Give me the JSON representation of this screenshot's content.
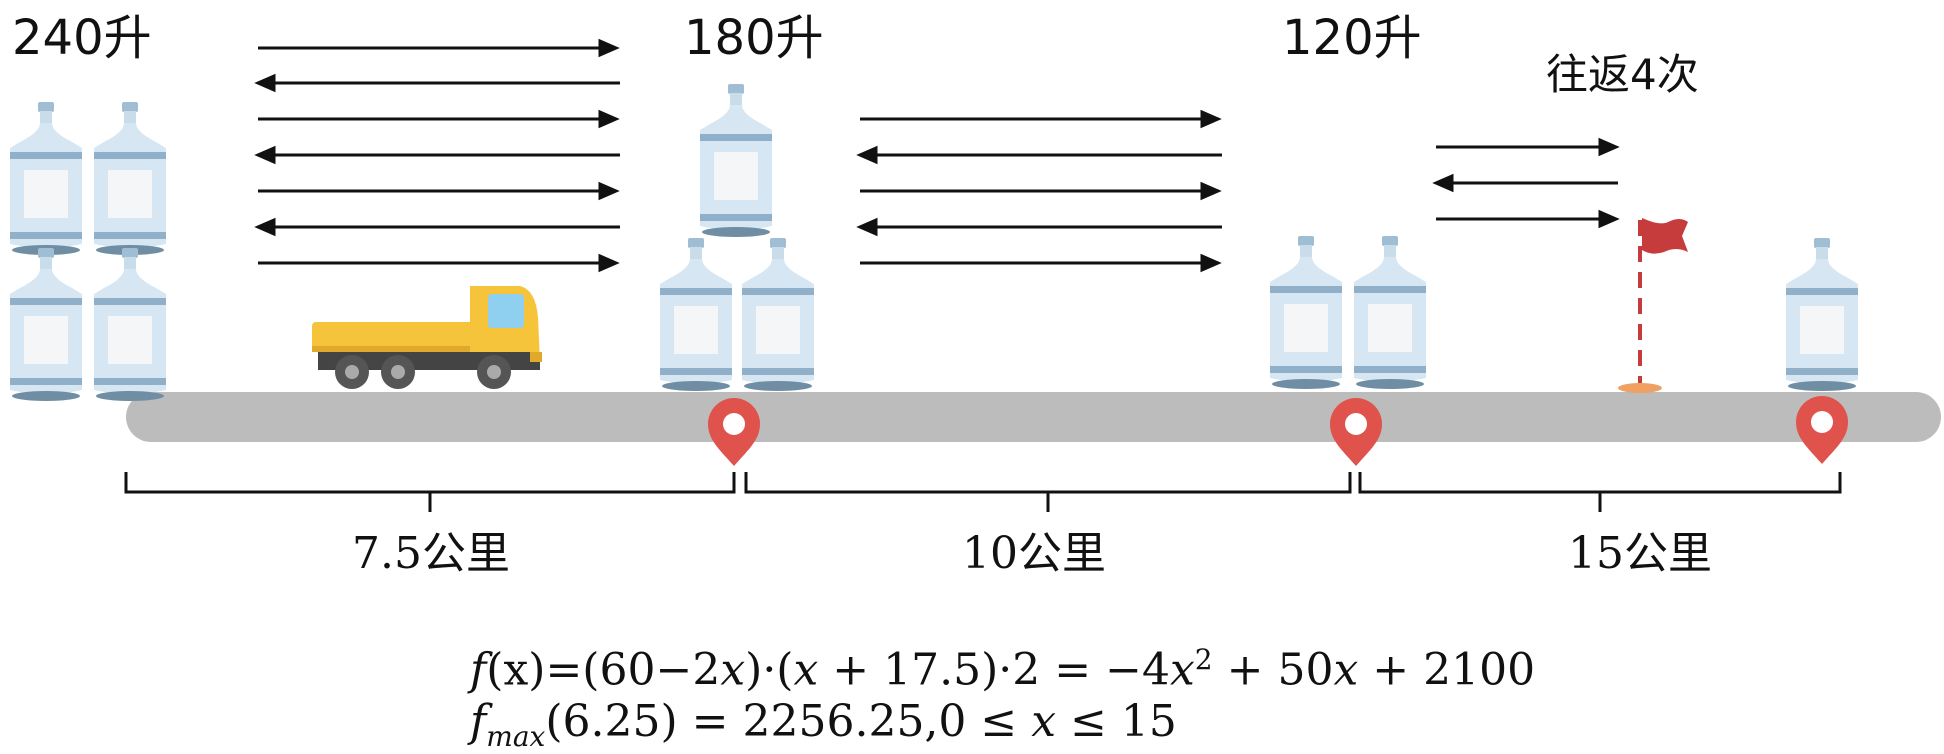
{
  "stations": [
    {
      "id": "start",
      "label": "240升"
    },
    {
      "id": "depot1",
      "label": "180升"
    },
    {
      "id": "depot2",
      "label": "120升"
    }
  ],
  "round_trip_note": "往返4次",
  "segments": [
    {
      "label": "7.5公里"
    },
    {
      "label": "10公里"
    },
    {
      "label": "15公里"
    }
  ],
  "formula": {
    "line1": {
      "f": "f",
      "args": "(x)=(60−2",
      "x1": "x",
      "mid1": ")·(",
      "x2": "x",
      "mid2": " + 17.5)·2 = −4",
      "x3": "x",
      "sup": "2",
      "mid3": " + 50",
      "x4": "x",
      "tail": " + 2100"
    },
    "line2": {
      "f": "f",
      "sub": "max",
      "mid": "(6.25) = 2256.25,0 ≤ ",
      "x": "x",
      "tail": " ≤ 15"
    }
  },
  "colors": {
    "road": "#bcbcbc",
    "pin": "#e0524c",
    "flag": "#c63b3b",
    "truck_body": "#f5c43a",
    "bottle": "#cfe0ee",
    "arrow": "#111111"
  }
}
